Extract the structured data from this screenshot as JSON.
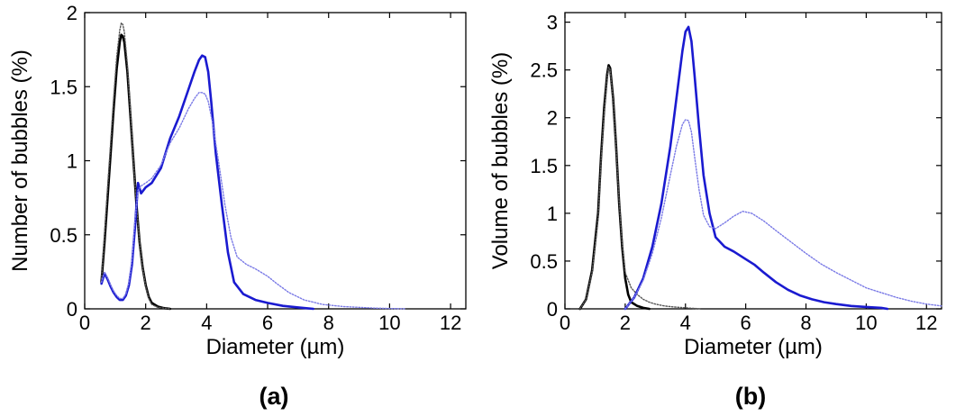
{
  "chart_data": [
    {
      "type": "line",
      "panel_label": "(a)",
      "xlabel": "Diameter (µm)",
      "ylabel": "Number of bubbles (%)",
      "xlim": [
        0,
        12.5
      ],
      "ylim": [
        0,
        2
      ],
      "xticks": [
        0,
        2,
        4,
        6,
        8,
        10,
        12
      ],
      "yticks": [
        0,
        0.5,
        1,
        1.5,
        2
      ],
      "ytick_labels": [
        "0",
        "0.5",
        "1",
        "1.5",
        "2"
      ],
      "grid": false,
      "series": [
        {
          "color": "#000000",
          "style": "solid",
          "x": [
            0.55,
            0.65,
            0.75,
            0.85,
            0.95,
            1.05,
            1.15,
            1.2,
            1.25,
            1.3,
            1.4,
            1.5,
            1.6,
            1.7,
            1.8,
            1.9,
            2.0,
            2.1,
            2.2,
            2.4,
            2.6,
            2.8
          ],
          "y": [
            0.18,
            0.45,
            0.75,
            1.05,
            1.35,
            1.62,
            1.8,
            1.85,
            1.84,
            1.8,
            1.6,
            1.3,
            1.0,
            0.7,
            0.45,
            0.28,
            0.16,
            0.08,
            0.04,
            0.015,
            0.005,
            0
          ]
        },
        {
          "color": "#555555",
          "style": "dotted",
          "x": [
            0.55,
            0.65,
            0.75,
            0.85,
            0.95,
            1.05,
            1.15,
            1.2,
            1.25,
            1.3,
            1.4,
            1.5,
            1.6,
            1.7,
            1.8,
            1.9,
            2.0,
            2.1,
            2.2,
            2.4,
            2.6,
            2.8
          ],
          "y": [
            0.2,
            0.5,
            0.82,
            1.12,
            1.42,
            1.7,
            1.88,
            1.93,
            1.92,
            1.87,
            1.65,
            1.33,
            1.0,
            0.7,
            0.45,
            0.28,
            0.15,
            0.07,
            0.03,
            0.01,
            0.005,
            0
          ]
        },
        {
          "color": "#1a1ad0",
          "style": "solid",
          "x": [
            0.55,
            0.65,
            0.75,
            0.85,
            0.95,
            1.05,
            1.15,
            1.25,
            1.35,
            1.45,
            1.55,
            1.65,
            1.75,
            1.85,
            2.0,
            2.2,
            2.5,
            2.8,
            3.1,
            3.4,
            3.6,
            3.75,
            3.85,
            3.95,
            4.05,
            4.15,
            4.3,
            4.5,
            4.7,
            4.9,
            5.2,
            5.6,
            6.0,
            6.5,
            7.0,
            7.5
          ],
          "y": [
            0.17,
            0.24,
            0.2,
            0.15,
            0.11,
            0.08,
            0.06,
            0.06,
            0.09,
            0.16,
            0.3,
            0.55,
            0.85,
            0.78,
            0.82,
            0.85,
            0.95,
            1.15,
            1.3,
            1.48,
            1.6,
            1.68,
            1.71,
            1.7,
            1.6,
            1.4,
            1.05,
            0.7,
            0.38,
            0.18,
            0.1,
            0.06,
            0.04,
            0.02,
            0.01,
            0
          ]
        },
        {
          "color": "#7a7ae6",
          "style": "dotted",
          "x": [
            0.55,
            0.65,
            0.75,
            0.85,
            0.95,
            1.05,
            1.15,
            1.25,
            1.35,
            1.45,
            1.55,
            1.65,
            1.75,
            1.85,
            2.0,
            2.2,
            2.5,
            2.8,
            3.1,
            3.4,
            3.6,
            3.75,
            3.85,
            3.95,
            4.05,
            4.2,
            4.4,
            4.6,
            4.8,
            5.0,
            5.3,
            5.6,
            6.0,
            6.3,
            6.7,
            7.2,
            7.8,
            8.5,
            9.5,
            10.5
          ],
          "y": [
            0.18,
            0.25,
            0.21,
            0.16,
            0.12,
            0.09,
            0.07,
            0.07,
            0.1,
            0.18,
            0.33,
            0.6,
            0.8,
            0.83,
            0.85,
            0.88,
            0.97,
            1.12,
            1.22,
            1.35,
            1.42,
            1.46,
            1.46,
            1.45,
            1.4,
            1.25,
            0.98,
            0.7,
            0.48,
            0.35,
            0.3,
            0.27,
            0.22,
            0.17,
            0.11,
            0.06,
            0.03,
            0.015,
            0.005,
            0
          ]
        }
      ]
    },
    {
      "type": "line",
      "panel_label": "(b)",
      "xlabel": "Diameter (µm)",
      "ylabel": "Volume of bubbles (%)",
      "xlim": [
        0,
        12.5
      ],
      "ylim": [
        0,
        3.1
      ],
      "xticks": [
        0,
        2,
        4,
        6,
        8,
        10,
        12
      ],
      "yticks": [
        0,
        0.5,
        1,
        1.5,
        2,
        2.5,
        3
      ],
      "ytick_labels": [
        "0",
        "0.5",
        "1",
        "1.5",
        "2",
        "2.5",
        "3"
      ],
      "grid": false,
      "series": [
        {
          "color": "#000000",
          "style": "solid",
          "x": [
            0.5,
            0.7,
            0.9,
            1.1,
            1.2,
            1.3,
            1.4,
            1.45,
            1.5,
            1.6,
            1.7,
            1.8,
            1.9,
            2.0,
            2.1,
            2.2,
            2.4,
            2.6,
            2.8
          ],
          "y": [
            0,
            0.1,
            0.4,
            1.0,
            1.6,
            2.1,
            2.45,
            2.55,
            2.52,
            2.2,
            1.7,
            1.1,
            0.65,
            0.32,
            0.15,
            0.07,
            0.03,
            0.01,
            0
          ]
        },
        {
          "color": "#555555",
          "style": "dotted",
          "x": [
            0.5,
            0.7,
            0.9,
            1.1,
            1.2,
            1.3,
            1.4,
            1.45,
            1.5,
            1.6,
            1.7,
            1.8,
            1.9,
            2.0,
            2.2,
            2.4,
            2.6,
            2.8,
            3.0,
            3.3,
            3.6,
            4.0,
            4.5
          ],
          "y": [
            0,
            0.1,
            0.38,
            0.95,
            1.55,
            2.05,
            2.42,
            2.53,
            2.5,
            2.18,
            1.7,
            1.12,
            0.68,
            0.38,
            0.22,
            0.15,
            0.1,
            0.07,
            0.05,
            0.03,
            0.02,
            0.01,
            0
          ]
        },
        {
          "color": "#1a1ad0",
          "style": "solid",
          "x": [
            2.0,
            2.3,
            2.6,
            2.9,
            3.2,
            3.5,
            3.7,
            3.9,
            4.0,
            4.1,
            4.2,
            4.3,
            4.45,
            4.6,
            4.8,
            5.0,
            5.3,
            5.6,
            6.0,
            6.3,
            6.6,
            7.0,
            7.4,
            7.8,
            8.2,
            8.6,
            9.0,
            9.5,
            10.0,
            10.5,
            10.7
          ],
          "y": [
            0,
            0.12,
            0.32,
            0.65,
            1.1,
            1.7,
            2.2,
            2.7,
            2.9,
            2.95,
            2.8,
            2.45,
            1.9,
            1.4,
            1.0,
            0.75,
            0.65,
            0.6,
            0.52,
            0.46,
            0.38,
            0.28,
            0.2,
            0.14,
            0.1,
            0.07,
            0.05,
            0.03,
            0.02,
            0.01,
            0
          ]
        },
        {
          "color": "#7a7ae6",
          "style": "dotted",
          "x": [
            2.0,
            2.3,
            2.6,
            2.9,
            3.2,
            3.5,
            3.7,
            3.9,
            4.0,
            4.1,
            4.2,
            4.3,
            4.45,
            4.6,
            4.8,
            5.0,
            5.3,
            5.6,
            5.9,
            6.2,
            6.6,
            7.0,
            7.5,
            8.0,
            8.5,
            9.0,
            9.5,
            10.0,
            10.5,
            11.0,
            11.5,
            12.0,
            12.5
          ],
          "y": [
            0,
            0.12,
            0.3,
            0.58,
            0.95,
            1.4,
            1.7,
            1.93,
            1.98,
            1.97,
            1.85,
            1.6,
            1.25,
            0.98,
            0.86,
            0.84,
            0.9,
            0.97,
            1.02,
            1.0,
            0.92,
            0.82,
            0.7,
            0.58,
            0.47,
            0.38,
            0.3,
            0.22,
            0.17,
            0.12,
            0.08,
            0.05,
            0.03
          ]
        }
      ]
    }
  ]
}
